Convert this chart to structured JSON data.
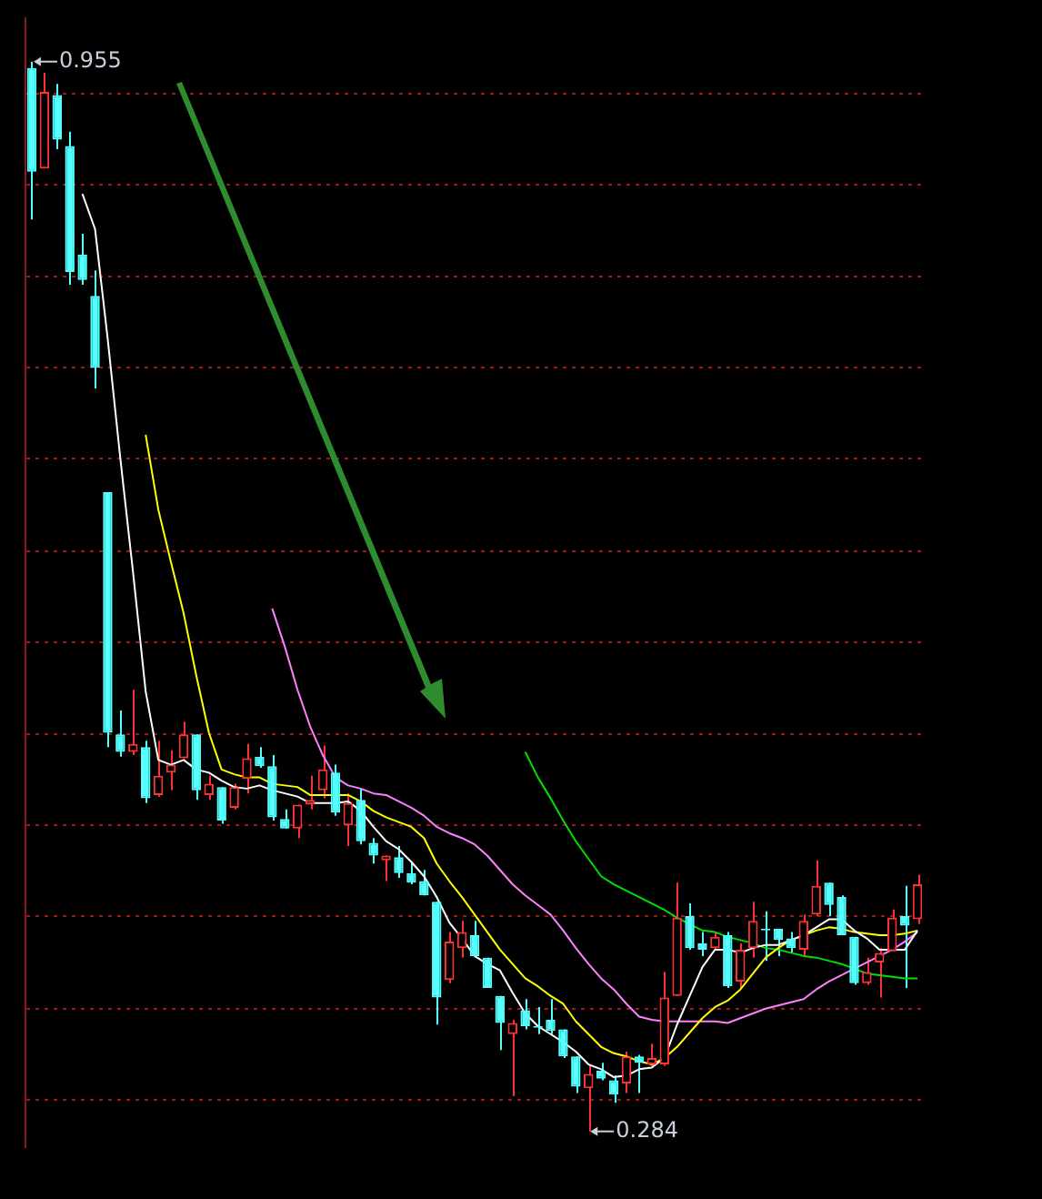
{
  "chart_data": {
    "type": "candlestick",
    "categories": [
      null,
      null,
      null,
      null,
      null,
      null,
      null,
      null,
      null,
      null,
      null,
      null,
      null,
      null,
      null,
      null,
      null,
      null,
      null,
      null,
      null,
      null,
      null,
      null,
      null,
      null,
      null,
      null,
      null,
      null,
      null,
      null,
      null,
      null,
      null,
      null,
      null,
      null,
      null,
      null,
      null,
      null,
      null,
      null,
      null,
      null,
      null,
      null,
      null,
      null,
      null,
      null,
      null,
      null,
      null,
      null,
      null,
      null,
      null,
      null,
      null,
      null,
      null,
      null,
      null,
      null,
      null,
      null,
      null,
      null,
      null
    ],
    "ohlc": [
      [
        0.951,
        0.955,
        0.856,
        0.886
      ],
      [
        0.888,
        0.948,
        0.888,
        0.936
      ],
      [
        0.934,
        0.941,
        0.9,
        0.906
      ],
      [
        0.902,
        0.911,
        0.815,
        0.823
      ],
      [
        0.834,
        0.847,
        0.815,
        0.818
      ],
      [
        0.808,
        0.824,
        0.75,
        0.763
      ],
      [
        0.685,
        0.685,
        0.525,
        0.534
      ],
      [
        0.533,
        0.548,
        0.519,
        0.522
      ],
      [
        0.522,
        0.561,
        0.52,
        0.527
      ],
      [
        0.525,
        0.529,
        0.49,
        0.493
      ],
      [
        0.495,
        0.529,
        0.494,
        0.507
      ],
      [
        0.509,
        0.523,
        0.498,
        0.514
      ],
      [
        0.518,
        0.541,
        0.518,
        0.533
      ],
      [
        0.533,
        0.533,
        0.492,
        0.498
      ],
      [
        0.495,
        0.507,
        0.492,
        0.502
      ],
      [
        0.5,
        0.5,
        0.477,
        0.479
      ],
      [
        0.487,
        0.502,
        0.486,
        0.5
      ],
      [
        0.505,
        0.527,
        0.496,
        0.518
      ],
      [
        0.519,
        0.525,
        0.512,
        0.513
      ],
      [
        0.513,
        0.52,
        0.479,
        0.481
      ],
      [
        0.48,
        0.486,
        0.474,
        0.474
      ],
      [
        0.474,
        0.489,
        0.468,
        0.489
      ],
      [
        0.489,
        0.507,
        0.486,
        0.492
      ],
      [
        0.498,
        0.526,
        0.493,
        0.511
      ],
      [
        0.509,
        0.514,
        0.482,
        0.484
      ],
      [
        0.476,
        0.496,
        0.463,
        0.49
      ],
      [
        0.492,
        0.499,
        0.464,
        0.466
      ],
      [
        0.465,
        0.468,
        0.452,
        0.457
      ],
      [
        0.454,
        0.457,
        0.441,
        0.457
      ],
      [
        0.456,
        0.463,
        0.443,
        0.446
      ],
      [
        0.446,
        0.453,
        0.439,
        0.44
      ],
      [
        0.441,
        0.448,
        0.432,
        0.432
      ],
      [
        0.428,
        0.428,
        0.351,
        0.368
      ],
      [
        0.379,
        0.409,
        0.377,
        0.403
      ],
      [
        0.399,
        0.416,
        0.393,
        0.409
      ],
      [
        0.407,
        0.416,
        0.393,
        0.394
      ],
      [
        0.393,
        0.393,
        0.374,
        0.374
      ],
      [
        0.369,
        0.369,
        0.335,
        0.352
      ],
      [
        0.345,
        0.354,
        0.306,
        0.352
      ],
      [
        0.36,
        0.367,
        0.348,
        0.35
      ],
      [
        0.35,
        0.362,
        0.345,
        0.349
      ],
      [
        0.354,
        0.367,
        0.345,
        0.347
      ],
      [
        0.348,
        0.348,
        0.33,
        0.331
      ],
      [
        0.331,
        0.331,
        0.308,
        0.312
      ],
      [
        0.311,
        0.326,
        0.284,
        0.32
      ],
      [
        0.322,
        0.327,
        0.316,
        0.317
      ],
      [
        0.316,
        0.319,
        0.302,
        0.307
      ],
      [
        0.314,
        0.334,
        0.308,
        0.331
      ],
      [
        0.331,
        0.332,
        0.308,
        0.327
      ],
      [
        0.326,
        0.339,
        0.325,
        0.33
      ],
      [
        0.326,
        0.384,
        0.325,
        0.368
      ],
      [
        0.369,
        0.44,
        0.369,
        0.418
      ],
      [
        0.419,
        0.427,
        0.398,
        0.399
      ],
      [
        0.402,
        0.409,
        0.394,
        0.398
      ],
      [
        0.399,
        0.409,
        0.398,
        0.406
      ],
      [
        0.407,
        0.409,
        0.374,
        0.375
      ],
      [
        0.378,
        0.402,
        0.374,
        0.398
      ],
      [
        0.399,
        0.428,
        0.393,
        0.416
      ],
      [
        0.411,
        0.422,
        0.391,
        0.41
      ],
      [
        0.411,
        0.411,
        0.394,
        0.404
      ],
      [
        0.405,
        0.409,
        0.396,
        0.399
      ],
      [
        0.398,
        0.42,
        0.394,
        0.416
      ],
      [
        0.42,
        0.454,
        0.419,
        0.438
      ],
      [
        0.44,
        0.44,
        0.419,
        0.426
      ],
      [
        0.431,
        0.432,
        0.407,
        0.407
      ],
      [
        0.406,
        0.406,
        0.376,
        0.377
      ],
      [
        0.377,
        0.393,
        0.376,
        0.384
      ],
      [
        0.39,
        0.399,
        0.368,
        0.396
      ],
      [
        0.397,
        0.423,
        0.397,
        0.418
      ],
      [
        0.419,
        0.438,
        0.374,
        0.413
      ],
      [
        0.417,
        0.445,
        0.414,
        0.439
      ]
    ],
    "series": [
      {
        "type": "line",
        "color": "#ffffff",
        "values": [
          null,
          null,
          null,
          null,
          0.872,
          0.85,
          0.781,
          0.706,
          0.635,
          0.56,
          0.517,
          0.514,
          0.517,
          0.511,
          0.509,
          0.504,
          0.5,
          0.499,
          0.501,
          0.498,
          0.496,
          0.494,
          0.49,
          0.49,
          0.49,
          0.491,
          0.485,
          0.475,
          0.466,
          0.461,
          0.453,
          0.444,
          0.431,
          0.415,
          0.405,
          0.394,
          0.389,
          0.385,
          0.371,
          0.358,
          0.35,
          0.345,
          0.34,
          0.334,
          0.326,
          0.323,
          0.318,
          0.319,
          0.323,
          0.324,
          0.33,
          0.351,
          0.369,
          0.387,
          0.398,
          0.398,
          0.396,
          0.399,
          0.401,
          0.401,
          0.404,
          0.407,
          0.412,
          0.417,
          0.417,
          0.41,
          0.405,
          0.398,
          0.398,
          0.398,
          0.41
        ]
      },
      {
        "type": "line",
        "color": "#ffff00",
        "values": [
          null,
          null,
          null,
          null,
          null,
          null,
          null,
          null,
          null,
          0.721,
          0.674,
          0.641,
          0.609,
          0.57,
          0.534,
          0.511,
          0.508,
          0.506,
          0.506,
          0.502,
          0.501,
          0.5,
          0.495,
          0.495,
          0.495,
          0.495,
          0.491,
          0.485,
          0.481,
          0.478,
          0.475,
          0.468,
          0.452,
          0.441,
          0.431,
          0.42,
          0.409,
          0.398,
          0.389,
          0.38,
          0.375,
          0.369,
          0.364,
          0.353,
          0.345,
          0.337,
          0.333,
          0.331,
          0.328,
          0.326,
          0.33,
          0.337,
          0.346,
          0.355,
          0.362,
          0.366,
          0.373,
          0.383,
          0.393,
          0.399,
          0.404,
          0.407,
          0.41,
          0.412,
          0.411,
          0.409,
          0.408,
          0.407,
          0.407,
          0.408,
          0.41
        ]
      },
      {
        "type": "line",
        "color": "#ff80ff",
        "values": [
          null,
          null,
          null,
          null,
          null,
          null,
          null,
          null,
          null,
          null,
          null,
          null,
          null,
          null,
          null,
          null,
          null,
          null,
          null,
          0.612,
          0.588,
          0.561,
          0.538,
          0.52,
          0.506,
          0.501,
          0.499,
          0.496,
          0.495,
          0.491,
          0.487,
          0.482,
          0.475,
          0.471,
          0.468,
          0.464,
          0.457,
          0.448,
          0.439,
          0.432,
          0.426,
          0.42,
          0.41,
          0.399,
          0.389,
          0.38,
          0.373,
          0.364,
          0.356,
          0.354,
          0.353,
          0.353,
          0.353,
          0.353,
          0.353,
          0.352,
          0.355,
          0.358,
          0.361,
          0.363,
          0.365,
          0.367,
          0.373,
          0.378,
          0.382,
          0.386,
          0.39,
          0.394,
          0.398,
          0.403,
          0.409
        ]
      },
      {
        "type": "line",
        "color": "#00e000",
        "values": [
          null,
          null,
          null,
          null,
          null,
          null,
          null,
          null,
          null,
          null,
          null,
          null,
          null,
          null,
          null,
          null,
          null,
          null,
          null,
          null,
          null,
          null,
          null,
          null,
          null,
          null,
          null,
          null,
          null,
          null,
          null,
          null,
          null,
          null,
          null,
          null,
          null,
          null,
          null,
          0.522,
          0.506,
          0.493,
          0.479,
          0.466,
          0.455,
          0.444,
          0.439,
          0.435,
          0.431,
          0.427,
          0.423,
          0.418,
          0.414,
          0.41,
          0.409,
          0.406,
          0.404,
          0.402,
          0.399,
          0.398,
          0.396,
          0.394,
          0.393,
          0.391,
          0.389,
          0.386,
          0.383,
          0.382,
          0.381,
          0.38,
          0.38
        ]
      }
    ],
    "ylim": [
      0.274,
      0.982
    ],
    "yticks": [
      {
        "value": 0.935,
        "label": null
      },
      {
        "value": 0.878,
        "label": null
      },
      {
        "value": 0.82,
        "label": null
      },
      {
        "value": 0.763,
        "label": null
      },
      {
        "value": 0.706,
        "label": null
      },
      {
        "value": 0.648,
        "label": null
      },
      {
        "value": 0.591,
        "label": null
      },
      {
        "value": 0.533,
        "label": null
      },
      {
        "value": 0.476,
        "label": null
      },
      {
        "value": 0.419,
        "label": null
      },
      {
        "value": 0.361,
        "label": null
      },
      {
        "value": 0.304,
        "label": null
      }
    ],
    "grid": "y",
    "annotations": [
      "0.955",
      "0.284"
    ]
  }
}
